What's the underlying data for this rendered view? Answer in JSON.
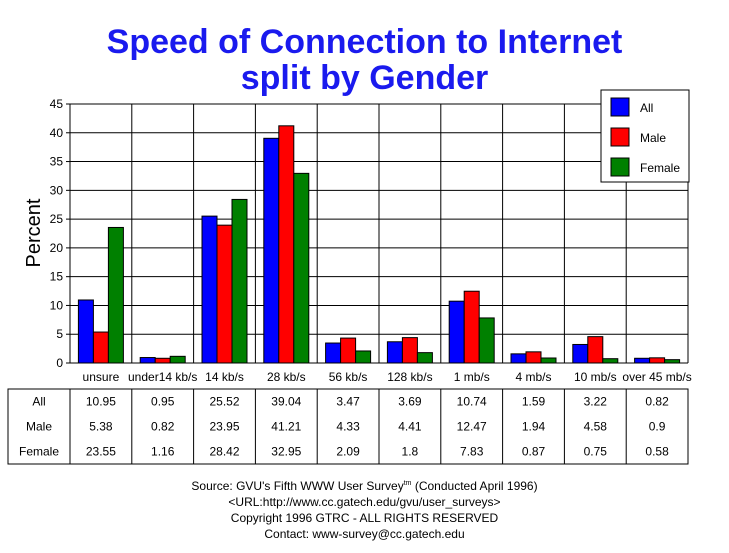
{
  "title": {
    "line1": "Speed of Connection to Internet",
    "line2": "split by Gender"
  },
  "chart_data": {
    "type": "bar",
    "title": "Speed of Connection to Internet split by Gender",
    "ylabel": "Percent",
    "xlabel": "",
    "ylim": [
      0,
      45
    ],
    "yticks": [
      0,
      5,
      10,
      15,
      20,
      25,
      30,
      35,
      40,
      45
    ],
    "grid": true,
    "legend_position": "top-right",
    "categories": [
      "unsure",
      "under14 kb/s",
      "14 kb/s",
      "28 kb/s",
      "56 kb/s",
      "128 kb/s",
      "1 mb/s",
      "4 mb/s",
      "10 mb/s",
      "over 45 mb/s"
    ],
    "series": [
      {
        "name": "All",
        "color": "#0000ff",
        "values": [
          10.95,
          0.95,
          25.52,
          39.04,
          3.47,
          3.69,
          10.74,
          1.59,
          3.22,
          0.82
        ]
      },
      {
        "name": "Male",
        "color": "#ff0000",
        "values": [
          5.38,
          0.82,
          23.95,
          41.21,
          4.33,
          4.41,
          12.47,
          1.94,
          4.58,
          0.9
        ]
      },
      {
        "name": "Female",
        "color": "#008000",
        "values": [
          23.55,
          1.16,
          28.42,
          32.95,
          2.09,
          1.8,
          7.83,
          0.87,
          0.75,
          0.58
        ]
      }
    ],
    "table": {
      "rows": [
        "All",
        "Male",
        "Female"
      ],
      "values": [
        [
          "10.95",
          "0.95",
          "25.52",
          "39.04",
          "3.47",
          "3.69",
          "10.74",
          "1.59",
          "3.22",
          "0.82"
        ],
        [
          "5.38",
          "0.82",
          "23.95",
          "41.21",
          "4.33",
          "4.41",
          "12.47",
          "1.94",
          "4.58",
          "0.9"
        ],
        [
          "23.55",
          "1.16",
          "28.42",
          "32.95",
          "2.09",
          "1.8",
          "7.83",
          "0.87",
          "0.75",
          "0.58"
        ]
      ]
    }
  },
  "footer": {
    "line1_a": "Source: GVU's Fifth WWW User Survey",
    "line1_sup": "tm",
    "line1_b": "  (Conducted April 1996)",
    "line2": "<URL:http://www.cc.gatech.edu/gvu/user_surveys>",
    "line3": "Copyright 1996 GTRC -  ALL RIGHTS RESERVED",
    "line4": "Contact: www-survey@cc.gatech.edu"
  }
}
